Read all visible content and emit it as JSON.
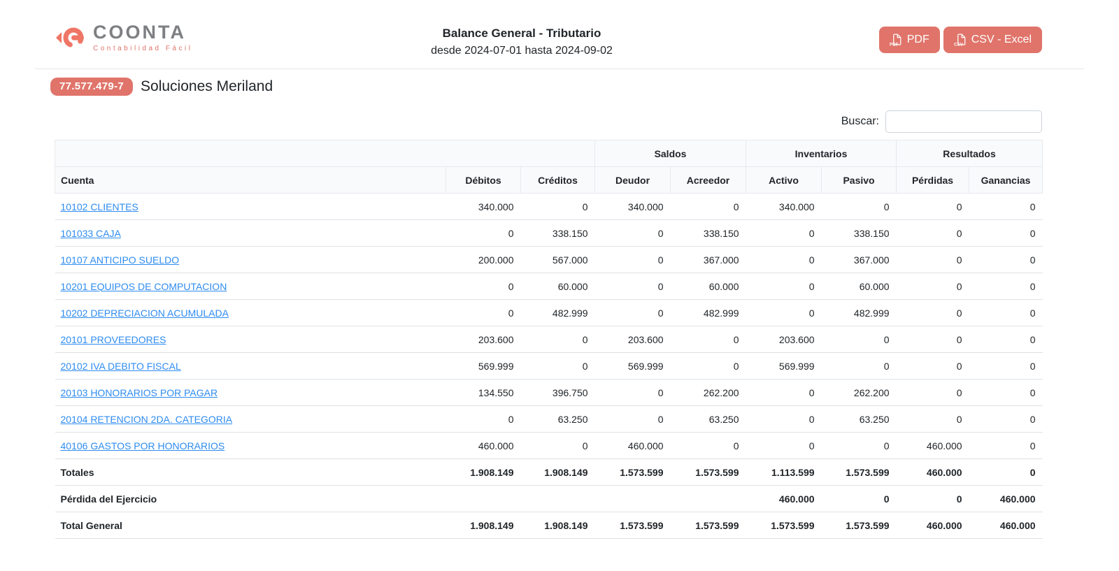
{
  "brand": {
    "name": "COONTA",
    "tagline": "Contabilidad Fácil"
  },
  "header": {
    "title": "Balance General - Tributario",
    "subtitle": "desde 2024-07-01 hasta 2024-09-02",
    "pdf_button": "PDF",
    "csv_button": "CSV - Excel"
  },
  "company": {
    "rut": "77.577.479-7",
    "name": "Soluciones Meriland"
  },
  "search": {
    "label": "Buscar:",
    "value": ""
  },
  "colors": {
    "accent": "#e0746a",
    "link": "#2e8cf0"
  },
  "table": {
    "group_headers": [
      {
        "label": "",
        "span": 3
      },
      {
        "label": "Saldos",
        "span": 2
      },
      {
        "label": "Inventarios",
        "span": 2
      },
      {
        "label": "Resultados",
        "span": 2
      }
    ],
    "columns": [
      "Cuenta",
      "Débitos",
      "Créditos",
      "Deudor",
      "Acreedor",
      "Activo",
      "Pasivo",
      "Pérdidas",
      "Ganancias"
    ],
    "rows": [
      {
        "account": "10102 CLIENTES",
        "values": [
          "340.000",
          "0",
          "340.000",
          "0",
          "340.000",
          "0",
          "0",
          "0"
        ]
      },
      {
        "account": "101033 CAJA",
        "values": [
          "0",
          "338.150",
          "0",
          "338.150",
          "0",
          "338.150",
          "0",
          "0"
        ]
      },
      {
        "account": "10107 ANTICIPO SUELDO",
        "values": [
          "200.000",
          "567.000",
          "0",
          "367.000",
          "0",
          "367.000",
          "0",
          "0"
        ]
      },
      {
        "account": "10201 EQUIPOS DE COMPUTACION",
        "values": [
          "0",
          "60.000",
          "0",
          "60.000",
          "0",
          "60.000",
          "0",
          "0"
        ]
      },
      {
        "account": "10202 DEPRECIACION ACUMULADA",
        "values": [
          "0",
          "482.999",
          "0",
          "482.999",
          "0",
          "482.999",
          "0",
          "0"
        ]
      },
      {
        "account": "20101 PROVEEDORES",
        "values": [
          "203.600",
          "0",
          "203.600",
          "0",
          "203.600",
          "0",
          "0",
          "0"
        ]
      },
      {
        "account": "20102 IVA DEBITO FISCAL",
        "values": [
          "569.999",
          "0",
          "569.999",
          "0",
          "569.999",
          "0",
          "0",
          "0"
        ]
      },
      {
        "account": "20103 HONORARIOS POR PAGAR",
        "values": [
          "134.550",
          "396.750",
          "0",
          "262.200",
          "0",
          "262.200",
          "0",
          "0"
        ]
      },
      {
        "account": "20104 RETENCION 2DA. CATEGORIA",
        "values": [
          "0",
          "63.250",
          "0",
          "63.250",
          "0",
          "63.250",
          "0",
          "0"
        ]
      },
      {
        "account": "40106 GASTOS POR HONORARIOS",
        "values": [
          "460.000",
          "0",
          "460.000",
          "0",
          "0",
          "0",
          "460.000",
          "0"
        ]
      }
    ],
    "footer_rows": [
      {
        "label": "Totales",
        "values": [
          "1.908.149",
          "1.908.149",
          "1.573.599",
          "1.573.599",
          "1.113.599",
          "1.573.599",
          "460.000",
          "0"
        ]
      },
      {
        "label": "Pérdida del Ejercicio",
        "values": [
          "",
          "",
          "",
          "",
          "460.000",
          "0",
          "0",
          "460.000"
        ]
      },
      {
        "label": "Total General",
        "values": [
          "1.908.149",
          "1.908.149",
          "1.573.599",
          "1.573.599",
          "1.573.599",
          "1.573.599",
          "460.000",
          "460.000"
        ]
      }
    ]
  }
}
